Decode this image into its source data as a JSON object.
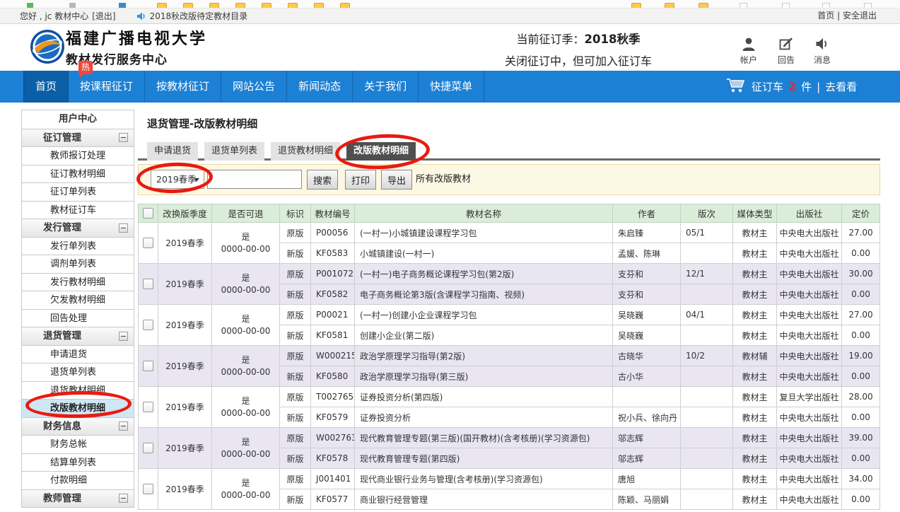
{
  "topbar": {
    "greeting": "您好 , jc 教材中心",
    "logout": "[退出]",
    "announcement": "2018秋改版待定教材目录",
    "home": "首页",
    "divider": "|",
    "safe_logout": "安全退出"
  },
  "header": {
    "university": "福建广播电视大学",
    "department": "教材发行服务中心",
    "hot_badge": "热",
    "season_label": "当前征订季：",
    "season_value": "2018秋季",
    "season_note": "关闭征订中，但可加入征订车",
    "icons": [
      {
        "name": "account",
        "label": "帐户"
      },
      {
        "name": "reply",
        "label": "回告"
      },
      {
        "name": "message",
        "label": "消息"
      }
    ]
  },
  "nav": {
    "items": [
      "首页",
      "按课程征订",
      "按教材征订",
      "网站公告",
      "新闻动态",
      "关于我们",
      "快捷菜单"
    ],
    "active_index": 0,
    "cart": {
      "label": "征订车",
      "count": "2",
      "unit": "件",
      "divider": "|",
      "link": "去看看"
    }
  },
  "sidebar": {
    "items": [
      {
        "type": "root",
        "label": "用户中心"
      },
      {
        "type": "header",
        "label": "征订管理",
        "collapsible": true
      },
      {
        "type": "item",
        "label": "教师报订处理"
      },
      {
        "type": "item",
        "label": "征订教材明细"
      },
      {
        "type": "item",
        "label": "征订单列表"
      },
      {
        "type": "item",
        "label": "教材征订车"
      },
      {
        "type": "header",
        "label": "发行管理",
        "collapsible": true
      },
      {
        "type": "item",
        "label": "发行单列表"
      },
      {
        "type": "item",
        "label": "调剂单列表"
      },
      {
        "type": "item",
        "label": "发行教材明细"
      },
      {
        "type": "item",
        "label": "欠发教材明细"
      },
      {
        "type": "item",
        "label": "回告处理"
      },
      {
        "type": "header",
        "label": "退货管理",
        "collapsible": true
      },
      {
        "type": "item",
        "label": "申请退货"
      },
      {
        "type": "item",
        "label": "退货单列表"
      },
      {
        "type": "item",
        "label": "退货教材明细"
      },
      {
        "type": "item",
        "label": "改版教材明细",
        "active": true
      },
      {
        "type": "header",
        "label": "财务信息",
        "collapsible": true
      },
      {
        "type": "item",
        "label": "财务总帐"
      },
      {
        "type": "item",
        "label": "结算单列表"
      },
      {
        "type": "item",
        "label": "付款明细"
      },
      {
        "type": "header",
        "label": "教师管理",
        "collapsible": true
      }
    ]
  },
  "main": {
    "title": "退货管理-改版教材明细",
    "tabs": [
      "申请退货",
      "退货单列表",
      "退货教材明细",
      "改版教材明细"
    ],
    "active_tab_index": 3,
    "toolbar": {
      "season_select": "2019春季",
      "search_value": "",
      "buttons": [
        "搜索",
        "打印",
        "导出"
      ],
      "note": "所有改版教材"
    },
    "table": {
      "columns": [
        "改换版季度",
        "是否可退",
        "标识",
        "教材编号",
        "教材名称",
        "作者",
        "版次",
        "媒体类型",
        "出版社",
        "定价"
      ],
      "groups": [
        {
          "season": "2019春季",
          "returnable": "是",
          "date": "0000-00-00",
          "rows": [
            {
              "tag": "原版",
              "code": "P00056",
              "name": "(一村一)小城镇建设课程学习包",
              "author": "朱启臻",
              "edition": "05/1",
              "media": "教材主",
              "publisher": "中央电大出版社",
              "price": "27.00"
            },
            {
              "tag": "新版",
              "code": "KF0583",
              "name": "小城镇建设(一村一)",
              "author": "孟媛、陈琳",
              "edition": "",
              "media": "教材主",
              "publisher": "中央电大出版社",
              "price": "0.00"
            }
          ]
        },
        {
          "season": "2019春季",
          "returnable": "是",
          "date": "0000-00-00",
          "rows": [
            {
              "tag": "原版",
              "code": "P001072",
              "name": "(一村一)电子商务概论课程学习包(第2版)",
              "author": "支芬和",
              "edition": "12/1",
              "media": "教材主",
              "publisher": "中央电大出版社",
              "price": "30.00"
            },
            {
              "tag": "新版",
              "code": "KF0582",
              "name": "电子商务概论第3版(含课程学习指南、视频)",
              "author": "支芬和",
              "edition": "",
              "media": "教材主",
              "publisher": "中央电大出版社",
              "price": "0.00"
            }
          ]
        },
        {
          "season": "2019春季",
          "returnable": "是",
          "date": "0000-00-00",
          "rows": [
            {
              "tag": "原版",
              "code": "P00021",
              "name": "(一村一)创建小企业课程学习包",
              "author": "吴晓巍",
              "edition": "04/1",
              "media": "教材主",
              "publisher": "中央电大出版社",
              "price": "27.00"
            },
            {
              "tag": "新版",
              "code": "KF0581",
              "name": "创建小企业(第二版)",
              "author": "吴晓巍",
              "edition": "",
              "media": "教材主",
              "publisher": "中央电大出版社",
              "price": "0.00"
            }
          ]
        },
        {
          "season": "2019春季",
          "returnable": "是",
          "date": "0000-00-00",
          "rows": [
            {
              "tag": "原版",
              "code": "W000215",
              "name": "政治学原理学习指导(第2版)",
              "author": "古晓华",
              "edition": "10/2",
              "media": "教材辅",
              "publisher": "中央电大出版社",
              "price": "19.00"
            },
            {
              "tag": "新版",
              "code": "KF0580",
              "name": "政治学原理学习指导(第三版)",
              "author": "古小华",
              "edition": "",
              "media": "教材主",
              "publisher": "中央电大出版社",
              "price": "0.00"
            }
          ]
        },
        {
          "season": "2019春季",
          "returnable": "是",
          "date": "0000-00-00",
          "rows": [
            {
              "tag": "原版",
              "code": "T002765",
              "name": "证券投资分析(第四版)",
              "author": "",
              "edition": "",
              "media": "教材主",
              "publisher": "复旦大学出版社",
              "price": "28.00"
            },
            {
              "tag": "新版",
              "code": "KF0579",
              "name": "证券投资分析",
              "author": "祝小兵、徐向丹",
              "edition": "",
              "media": "教材主",
              "publisher": "中央电大出版社",
              "price": "0.00"
            }
          ]
        },
        {
          "season": "2019春季",
          "returnable": "是",
          "date": "0000-00-00",
          "rows": [
            {
              "tag": "原版",
              "code": "W002763",
              "name": "现代教育管理专题(第三版)(国开教材)(含考核册)(学习资源包)",
              "author": "邬志辉",
              "edition": "",
              "media": "教材主",
              "publisher": "中央电大出版社",
              "price": "39.00"
            },
            {
              "tag": "新版",
              "code": "KF0578",
              "name": "现代教育管理专题(第四版)",
              "author": "邬志辉",
              "edition": "",
              "media": "教材主",
              "publisher": "中央电大出版社",
              "price": "0.00"
            }
          ]
        },
        {
          "season": "2019春季",
          "returnable": "是",
          "date": "0000-00-00",
          "rows": [
            {
              "tag": "原版",
              "code": "J001401",
              "name": "现代商业银行业务与管理(含考核册)(学习资源包)",
              "author": "唐旭",
              "edition": "",
              "media": "教材主",
              "publisher": "中央电大出版社",
              "price": "34.00"
            },
            {
              "tag": "新版",
              "code": "KF0577",
              "name": "商业银行经营管理",
              "author": "陈颖、马丽娟",
              "edition": "",
              "media": "教材主",
              "publisher": "中央电大出版社",
              "price": "0.00"
            }
          ]
        }
      ]
    }
  },
  "colors": {
    "nav_blue": "#1c80d4",
    "nav_active_blue": "#0b5fa6",
    "annotation_red": "#ea1a0e",
    "hot_badge_red": "#f4453a",
    "table_header_green": "#d9edd9",
    "row_alt_lavender": "#e9e6f2",
    "toolbar_cream": "#fdf8e3",
    "sidebar_active_blue": "#cfe6f4"
  }
}
